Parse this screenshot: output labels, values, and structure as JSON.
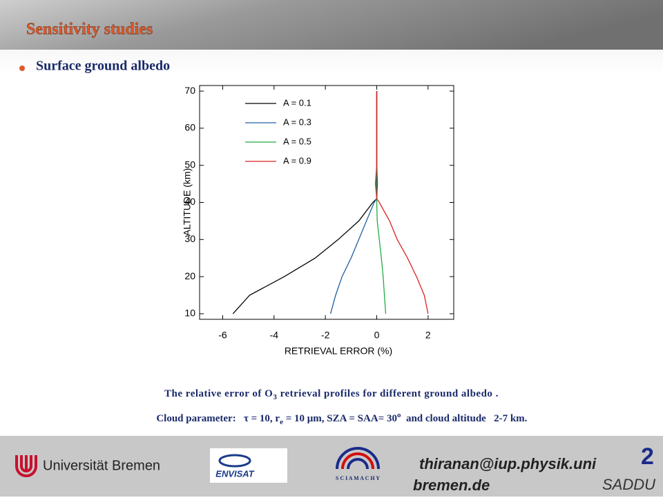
{
  "header": {
    "title": "Sensitivity studies",
    "bullet": "Surface ground albedo"
  },
  "chart_data": {
    "type": "line",
    "xlabel": "RETRIEVAL ERROR (%)",
    "ylabel": "ALTITUDE (km)",
    "y": [
      10,
      15,
      20,
      25,
      30,
      35,
      40,
      41,
      45,
      50,
      60,
      70
    ],
    "series": [
      {
        "name": "A = 0.1",
        "color": "#000000",
        "values": [
          -5.6,
          -4.95,
          -3.6,
          -2.4,
          -1.5,
          -0.7,
          -0.15,
          0,
          0.02,
          0,
          0,
          0
        ]
      },
      {
        "name": "A = 0.3",
        "color": "#1f5fa0",
        "values": [
          -1.8,
          -1.6,
          -1.35,
          -1.0,
          -0.7,
          -0.4,
          -0.1,
          0,
          0.03,
          0,
          0,
          0
        ]
      },
      {
        "name": "A = 0.5",
        "color": "#22aa44",
        "values": [
          0.35,
          0.3,
          0.25,
          0.18,
          0.1,
          0.02,
          0,
          0,
          -0.02,
          0,
          0,
          0
        ]
      },
      {
        "name": "A = 0.9",
        "color": "#dd2222",
        "values": [
          2.0,
          1.85,
          1.55,
          1.2,
          0.8,
          0.5,
          0.1,
          0,
          -0.05,
          0,
          0,
          0
        ]
      }
    ],
    "xlim": [
      -6.9,
      3
    ],
    "ylim": [
      8.5,
      71.5
    ],
    "xticks": [
      -6,
      -4,
      -2,
      0,
      2
    ],
    "yticks": [
      10,
      20,
      30,
      40,
      50,
      60,
      70
    ],
    "legend": "upper left"
  },
  "caption": {
    "line1": [
      "The relative error of O",
      "3",
      " retrieval profiles for different ground albedo ."
    ],
    "line2": [
      "Cloud parameter:   τ = 10, r",
      "e",
      " = 10 μm, SZA = SAA= 30",
      "o",
      "  and cloud altitude   2-7 km."
    ]
  },
  "footer": {
    "university": "Universität Bremen",
    "envisat": "ENVISAT",
    "sciamachy": "S C I A M A C H Y",
    "email_line1": "thiranan@iup.physik.uni",
    "email_line2": "bremen.de",
    "page": "2",
    "event": "SADDU"
  }
}
